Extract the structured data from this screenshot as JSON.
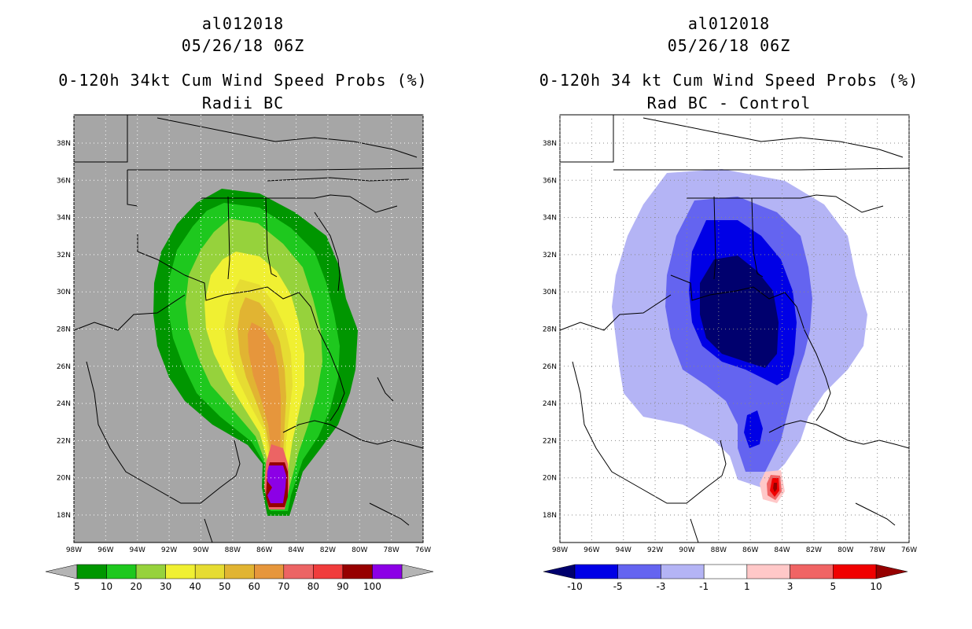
{
  "panels": [
    {
      "storm_id": "al012018",
      "datetime": "05/26/18 06Z",
      "product_title": "0-120h 34kt Cum Wind Speed Probs (%)",
      "subtitle": "Radii BC",
      "map_background": "#a6a6a6",
      "lat_labels": [
        "38N",
        "36N",
        "34N",
        "32N",
        "30N",
        "28N",
        "26N",
        "24N",
        "22N",
        "20N",
        "18N"
      ],
      "lon_labels": [
        "98W",
        "96W",
        "94W",
        "92W",
        "90W",
        "88W",
        "86W",
        "84W",
        "82W",
        "80W",
        "78W",
        "76W"
      ],
      "colorbar": {
        "labels": [
          "5",
          "10",
          "20",
          "30",
          "40",
          "50",
          "60",
          "70",
          "80",
          "90",
          "100"
        ],
        "colors": [
          "#009600",
          "#1ec81e",
          "#96d23c",
          "#f0f032",
          "#e6dc32",
          "#e1b432",
          "#e6963c",
          "#ec6464",
          "#f03c3c",
          "#960000",
          "#8c00e6"
        ],
        "ends": [
          "#b4b4b4",
          "#b4b4b4"
        ]
      }
    },
    {
      "storm_id": "al012018",
      "datetime": "05/26/18 06Z",
      "product_title": "0-120h 34 kt Cum Wind Speed Probs (%)",
      "subtitle": "Rad BC - Control",
      "map_background": "#ffffff",
      "lat_labels": [
        "38N",
        "36N",
        "34N",
        "32N",
        "30N",
        "28N",
        "26N",
        "24N",
        "22N",
        "20N",
        "18N"
      ],
      "lon_labels": [
        "98W",
        "96W",
        "94W",
        "92W",
        "90W",
        "88W",
        "86W",
        "84W",
        "82W",
        "80W",
        "78W",
        "76W"
      ],
      "colorbar": {
        "labels": [
          "-10",
          "-5",
          "-3",
          "-1",
          "1",
          "3",
          "5",
          "10"
        ],
        "colors": [
          "#0000e6",
          "#6464f0",
          "#b4b4f5",
          "#ffffff",
          "#ffc8c8",
          "#f06464",
          "#f00000"
        ],
        "ends": [
          "#00006e",
          "#960000"
        ]
      }
    }
  ]
}
